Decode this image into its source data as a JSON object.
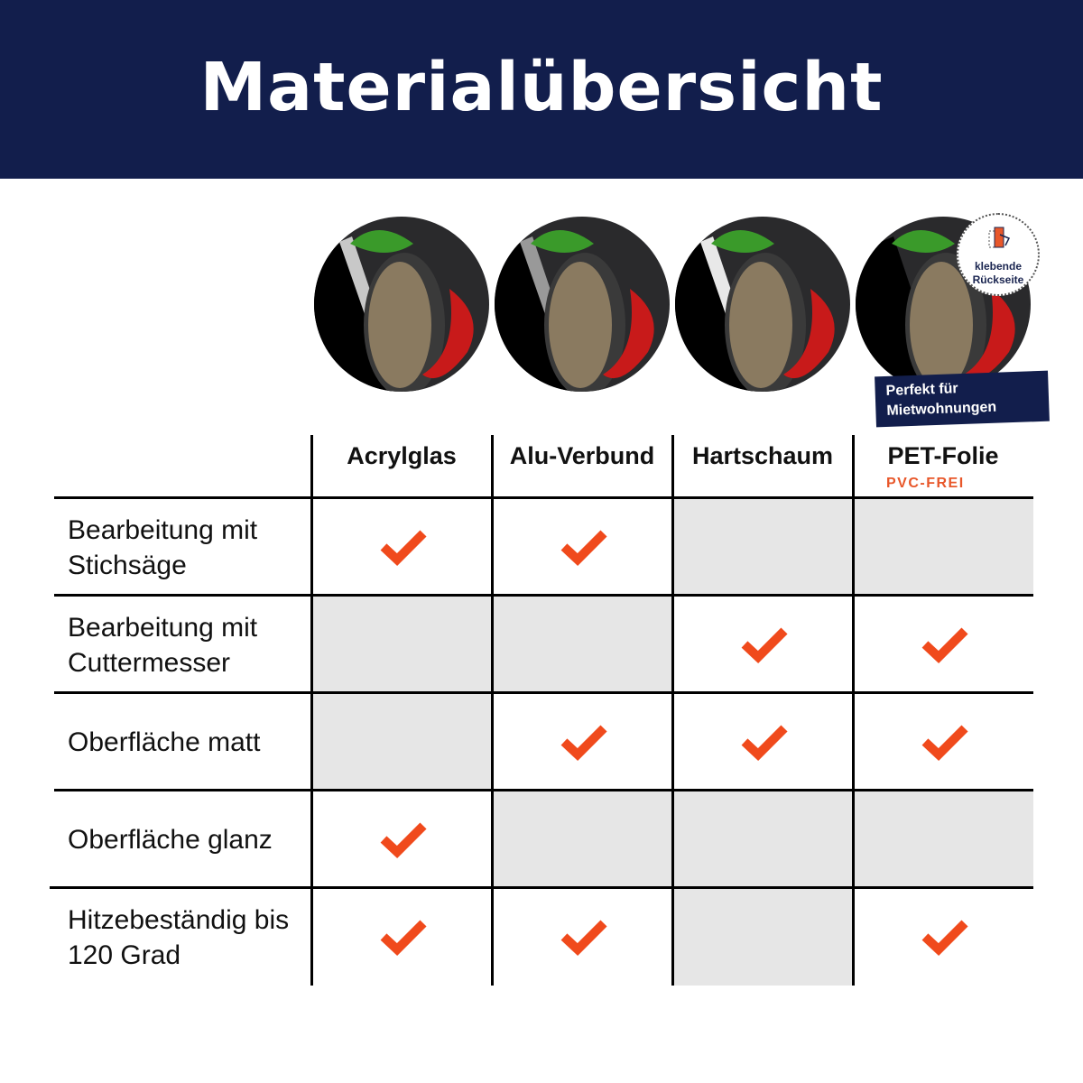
{
  "header": {
    "title": "Materialübersicht"
  },
  "badges": {
    "adhesive": "klebende Rückseite",
    "rental": "Perfekt für Mietwohnungen"
  },
  "columns": [
    {
      "label": "Acrylglas"
    },
    {
      "label": "Alu-Verbund"
    },
    {
      "label": "Hartschaum"
    },
    {
      "label": "PET-Folie",
      "sub": "PVC-FREI"
    }
  ],
  "rows": [
    {
      "label": "Bearbeitung mit Stichsäge",
      "checks": [
        true,
        true,
        false,
        false
      ]
    },
    {
      "label": "Bearbeitung mit Cuttermesser",
      "checks": [
        false,
        false,
        true,
        true
      ]
    },
    {
      "label": "Oberfläche matt",
      "checks": [
        false,
        true,
        true,
        true
      ]
    },
    {
      "label": "Oberfläche glanz",
      "checks": [
        true,
        false,
        false,
        false
      ]
    },
    {
      "label": "Hitzebeständig bis 120 Grad",
      "checks": [
        true,
        true,
        false,
        true
      ]
    }
  ],
  "colors": {
    "header": "#121e4c",
    "check": "#f04a1c",
    "accent": "#e8572a",
    "na_cell": "#e6e6e6"
  },
  "icons": {
    "check": "check-icon",
    "adhesive": "peel-sticker-icon"
  }
}
